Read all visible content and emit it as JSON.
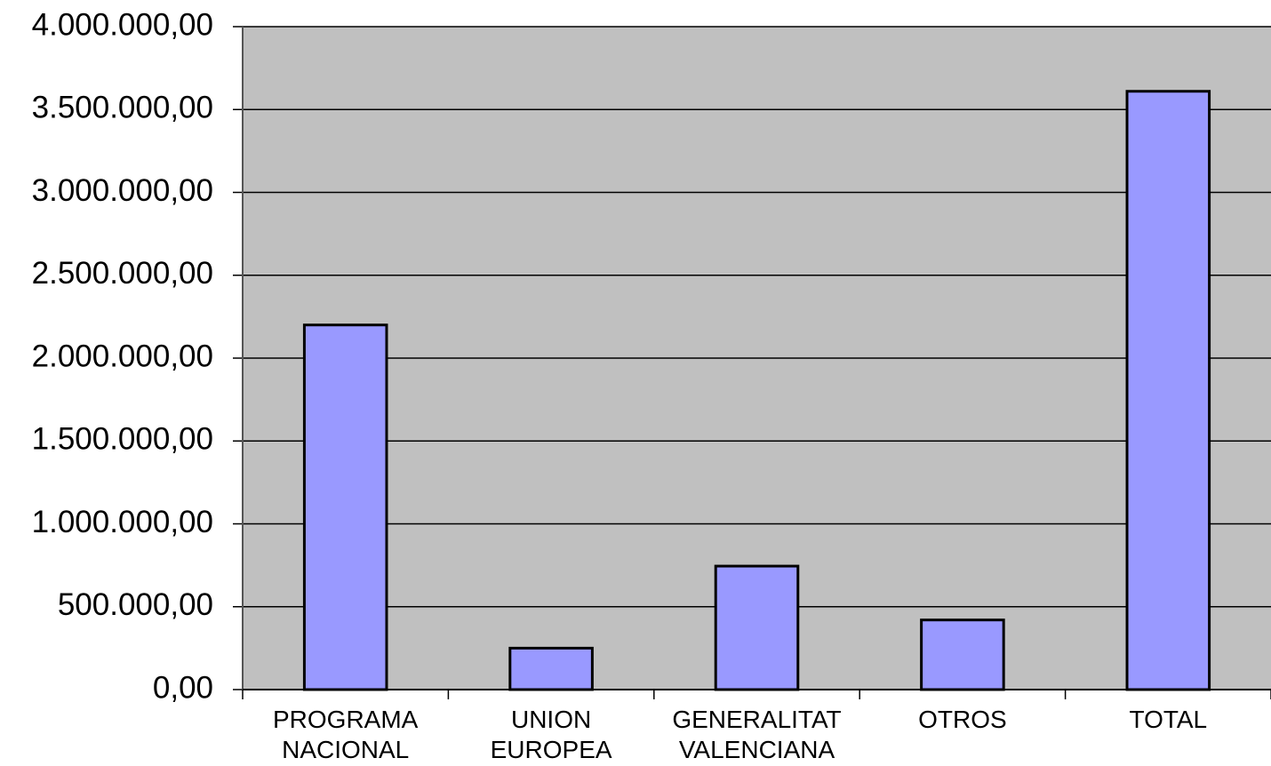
{
  "chart_data": {
    "type": "bar",
    "categories": [
      "PROGRAMA\nNACIONAL",
      "UNION\nEUROPEA",
      "GENERALITAT\nVALENCIANA",
      "OTROS",
      "TOTAL"
    ],
    "values": [
      2200000,
      250000,
      745000,
      420000,
      3610000
    ],
    "color": "#9999ff",
    "background": "#c0c0c0",
    "ylim": [
      0,
      4000000
    ],
    "yticks": [
      {
        "value": 0,
        "label": "0,00"
      },
      {
        "value": 500000,
        "label": "500.000,00"
      },
      {
        "value": 1000000,
        "label": "1.000.000,00"
      },
      {
        "value": 1500000,
        "label": "1.500.000,00"
      },
      {
        "value": 2000000,
        "label": "2.000.000,00"
      },
      {
        "value": 2500000,
        "label": "2.500.000,00"
      },
      {
        "value": 3000000,
        "label": "3.000.000,00"
      },
      {
        "value": 3500000,
        "label": "3.500.000,00"
      },
      {
        "value": 4000000,
        "label": "4.000.000,00"
      }
    ],
    "grid": true
  }
}
